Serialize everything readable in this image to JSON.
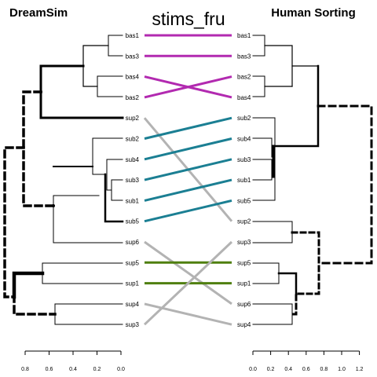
{
  "title": "stims_fru",
  "left_title": "DreamSim",
  "right_title": "Human Sorting",
  "left_leaves": [
    "bas1",
    "bas3",
    "bas4",
    "bas2",
    "sup2",
    "sub2",
    "sub4",
    "sub3",
    "sub1",
    "sub5",
    "sup6",
    "sup5",
    "sup1",
    "sup4",
    "sup3"
  ],
  "right_leaves": [
    "bas1",
    "bas3",
    "bas2",
    "bas4",
    "sub2",
    "sub4",
    "sub3",
    "sub1",
    "sub5",
    "sup2",
    "sup3",
    "sup5",
    "sup1",
    "sup6",
    "sup4"
  ],
  "left_axis_ticks": [
    "0.8",
    "0.6",
    "0.4",
    "0.2",
    "0.0"
  ],
  "right_axis_ticks": [
    "0.0",
    "0.2",
    "0.4",
    "0.6",
    "0.8",
    "1.0",
    "1.2"
  ],
  "connections": [
    {
      "from": "bas1",
      "to": "bas1",
      "color": "#B22AB0"
    },
    {
      "from": "bas3",
      "to": "bas3",
      "color": "#B22AB0"
    },
    {
      "from": "bas4",
      "to": "bas4",
      "color": "#B22AB0"
    },
    {
      "from": "bas2",
      "to": "bas2",
      "color": "#B22AB0"
    },
    {
      "from": "sup2",
      "to": "sup2",
      "color": "#B3B3B3"
    },
    {
      "from": "sub2",
      "to": "sub2",
      "color": "#1B7F93"
    },
    {
      "from": "sub4",
      "to": "sub4",
      "color": "#1B7F93"
    },
    {
      "from": "sub3",
      "to": "sub3",
      "color": "#1B7F93"
    },
    {
      "from": "sub1",
      "to": "sub1",
      "color": "#1B7F93"
    },
    {
      "from": "sub5",
      "to": "sub5",
      "color": "#1B7F93"
    },
    {
      "from": "sup6",
      "to": "sup6",
      "color": "#B3B3B3"
    },
    {
      "from": "sup5",
      "to": "sup5",
      "color": "#4F7F0F"
    },
    {
      "from": "sup1",
      "to": "sup1",
      "color": "#4F7F0F"
    },
    {
      "from": "sup4",
      "to": "sup4",
      "color": "#B3B3B3"
    },
    {
      "from": "sup3",
      "to": "sup3",
      "color": "#B3B3B3"
    }
  ]
}
